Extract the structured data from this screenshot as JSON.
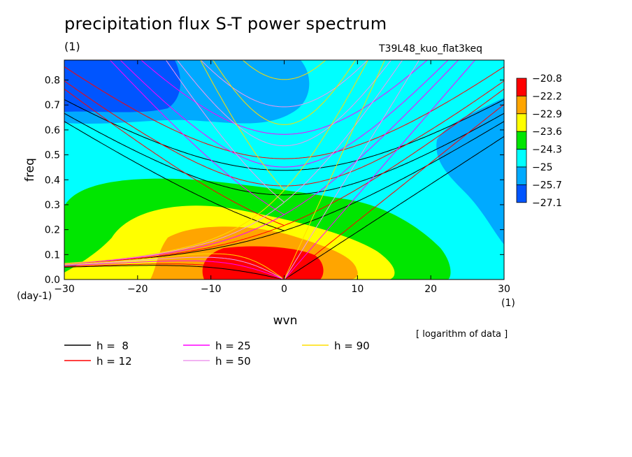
{
  "title": "precipitation flux S-T power spectrum",
  "subtitle_left": "(1)",
  "subtitle_right": "T39L48_kuo_flat3keq",
  "note": "[ logarithm of data ]",
  "chart_data": {
    "type": "heatmap",
    "xlabel": "wvn",
    "ylabel": "freq",
    "x_unit": "(1)",
    "y_unit": "(day-1)",
    "xlim": [
      -30,
      30
    ],
    "ylim": [
      0,
      0.88
    ],
    "x_ticks": [
      -30,
      -20,
      -10,
      0,
      10,
      20,
      30
    ],
    "y_ticks": [
      0.0,
      0.1,
      0.2,
      0.3,
      0.4,
      0.5,
      0.6,
      0.7,
      0.8
    ],
    "colorbar": {
      "levels": [
        "-20.8",
        "-22.2",
        "-22.9",
        "-23.6",
        "-24.3",
        "-25",
        "-25.7",
        "-27.1"
      ],
      "colors": [
        "#ff0000",
        "#ffa500",
        "#ffff00",
        "#00e600",
        "#00ffff",
        "#00aaff",
        "#0055ff"
      ]
    },
    "contour_regions": [
      {
        "level": "-25.7",
        "color": "#0055ff",
        "description": "upper left corner"
      },
      {
        "level": "-25",
        "color": "#00aaff",
        "description": "upper band"
      },
      {
        "level": "-25",
        "color": "#00ffff",
        "description": "background"
      },
      {
        "level": "-24.3",
        "color": "#00e600",
        "description": "low frequency lobe"
      },
      {
        "level": "-23.6",
        "color": "#ffff00",
        "description": "inner lobe"
      },
      {
        "level": "-22.9",
        "color": "#ffa500",
        "description": "inner lobe"
      },
      {
        "level": "-22.2",
        "color": "#ff0000",
        "description": "peak near wvn 0"
      }
    ],
    "dispersion_curves": [
      {
        "label": "h =  8",
        "h": 8,
        "color": "#000000"
      },
      {
        "label": "h = 12",
        "h": 12,
        "color": "#ff0000"
      },
      {
        "label": "h = 25",
        "h": 25,
        "color": "#ff00ff"
      },
      {
        "label": "h = 50",
        "h": 50,
        "color": "#ee99ee"
      },
      {
        "label": "h = 90",
        "h": 90,
        "color": "#ffdd00"
      }
    ]
  }
}
